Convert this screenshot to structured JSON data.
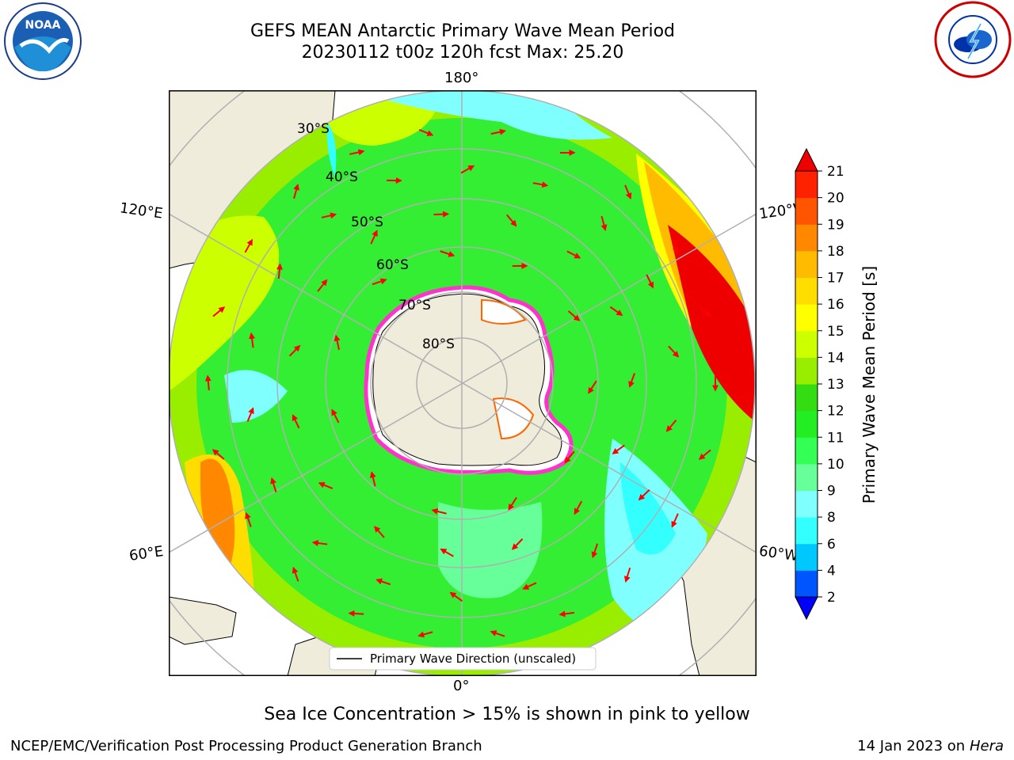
{
  "title_line1": "GEFS MEAN Antarctic Primary Wave Mean Period",
  "title_line2": "20230112 t00z 120h fcst   Max: 25.20",
  "map": {
    "lon_labels": {
      "top": "180°",
      "bottom": "0°",
      "upper_left": "120°E",
      "upper_right": "120°W",
      "lower_left": "60°E",
      "lower_right": "60°W"
    },
    "lat_labels": [
      "30°S",
      "40°S",
      "50°S",
      "60°S",
      "70°S",
      "80°S"
    ],
    "legend": "Primary Wave Direction (unscaled)",
    "colors": {
      "land": "#efecdc",
      "ocean_green": "#22ee22",
      "arrow": "#ff0000",
      "ice": "#ff33cc"
    }
  },
  "colorbar": {
    "label": "Primary Wave Mean Period [s]",
    "ticks": [
      "2",
      "4",
      "6",
      "8",
      "9",
      "10",
      "11",
      "12",
      "13",
      "14",
      "15",
      "16",
      "17",
      "18",
      "19",
      "20",
      "21"
    ],
    "colors": [
      "#0055ff",
      "#00c8ff",
      "#33ffff",
      "#80ffff",
      "#66ff99",
      "#33ff55",
      "#22ee22",
      "#33dd11",
      "#99ee00",
      "#ccff00",
      "#ffff00",
      "#ffdd00",
      "#ffbb00",
      "#ff8800",
      "#ff5500",
      "#ff2200"
    ],
    "under_color": "#0000ff",
    "over_color": "#ee0000"
  },
  "sea_ice_note": "Sea Ice Concentration > 15% is shown in pink to yellow",
  "credit_left": "NCEP/EMC/Verification Post Processing Product Generation Branch",
  "credit_right_date": "14 Jan 2023 on ",
  "credit_right_machine": "Hera"
}
